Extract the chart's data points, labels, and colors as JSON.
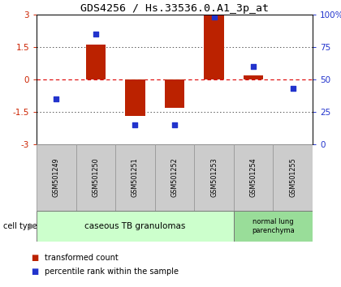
{
  "title": "GDS4256 / Hs.33536.0.A1_3p_at",
  "samples": [
    "GSM501249",
    "GSM501250",
    "GSM501251",
    "GSM501252",
    "GSM501253",
    "GSM501254",
    "GSM501255"
  ],
  "bar_values": [
    0.0,
    1.6,
    -1.7,
    -1.3,
    3.0,
    0.2,
    0.0
  ],
  "dot_values": [
    35,
    85,
    15,
    15,
    98,
    60,
    43
  ],
  "ylim": [
    -3,
    3
  ],
  "yticks_left": [
    -3,
    -1.5,
    0,
    1.5,
    3
  ],
  "yticks_right": [
    0,
    25,
    50,
    75,
    100
  ],
  "bar_color": "#bb2200",
  "dot_color": "#2233cc",
  "dotted_line_color": "#555555",
  "zero_line_color": "#dd0000",
  "group1_label": "caseous TB granulomas",
  "group1_indices": [
    0,
    1,
    2,
    3,
    4
  ],
  "group2_label": "normal lung\nparenchyma",
  "group2_indices": [
    5,
    6
  ],
  "group1_color": "#ccffcc",
  "group2_color": "#99dd99",
  "cell_type_label": "cell type",
  "legend_bar_label": "transformed count",
  "legend_dot_label": "percentile rank within the sample",
  "bg_color": "#ffffff",
  "spine_color": "#000000",
  "tick_color_left": "#cc2200",
  "tick_color_right": "#2233cc",
  "bar_width": 0.5,
  "sample_box_color": "#cccccc",
  "sample_box_edge": "#999999"
}
